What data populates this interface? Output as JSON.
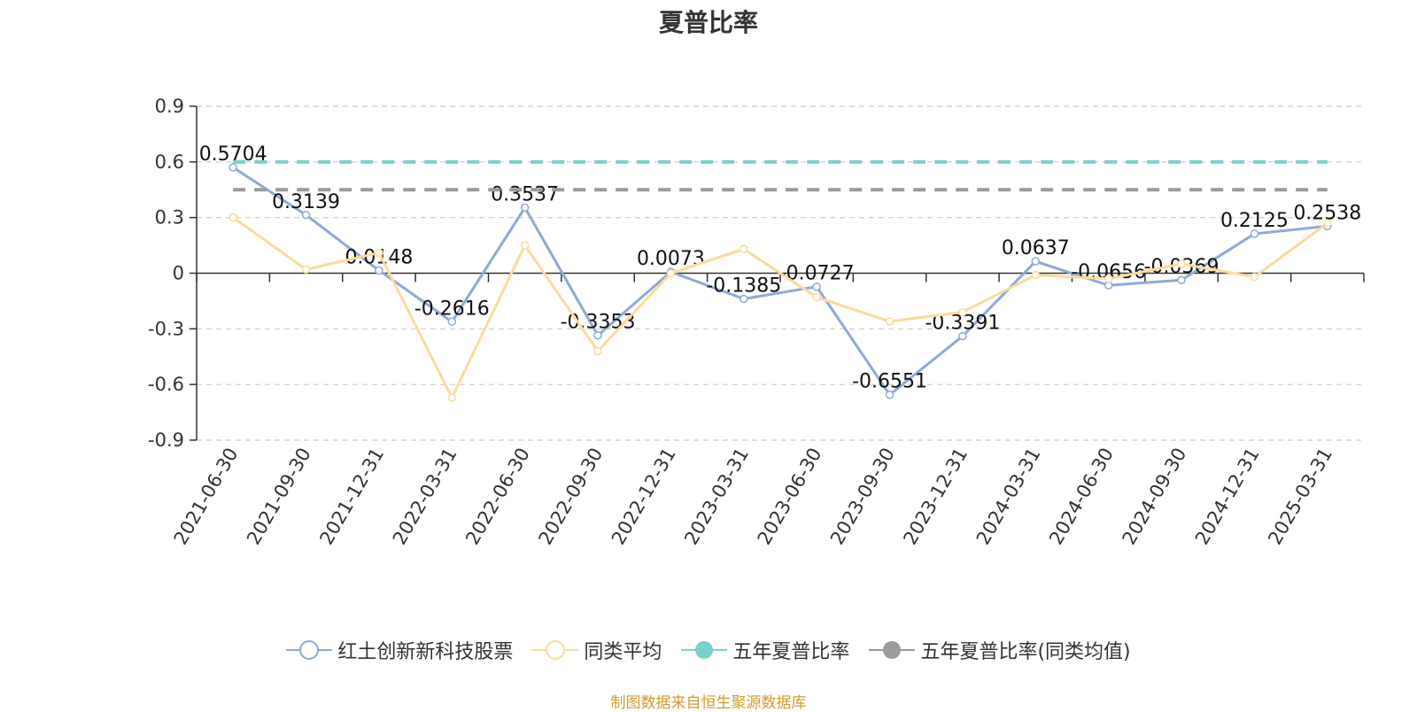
{
  "chart_data": {
    "type": "line",
    "title": "夏普比率",
    "categories": [
      "2021-06-30",
      "2021-09-30",
      "2021-12-31",
      "2022-03-31",
      "2022-06-30",
      "2022-09-30",
      "2022-12-31",
      "2023-03-31",
      "2023-06-30",
      "2023-09-30",
      "2023-12-31",
      "2024-03-31",
      "2024-06-30",
      "2024-09-30",
      "2024-12-31",
      "2025-03-31"
    ],
    "y_ticks": [
      "0.9",
      "0.6",
      "0.3",
      "0",
      "-0.3",
      "-0.6",
      "-0.9"
    ],
    "ylim": [
      -0.9,
      0.9
    ],
    "grid": true,
    "legend_position": "bottom",
    "series": [
      {
        "name": "红土创新新科技股票",
        "color": "#8eaad8",
        "style": "line",
        "values": [
          0.5704,
          0.3139,
          0.0148,
          -0.2616,
          0.3537,
          -0.3353,
          0.0073,
          -0.1385,
          -0.0727,
          -0.6551,
          -0.3391,
          0.0637,
          -0.0656,
          -0.0369,
          0.2125,
          0.2538
        ],
        "labels": [
          "0.5704",
          "0.3139",
          "0.0148",
          "-0.2616",
          "0.3537",
          "-0.3353",
          "0.0073",
          "-0.1385",
          "-0.0727",
          "-0.6551",
          "-0.3391",
          "0.0637",
          "-0.0656",
          "-0.0369",
          "0.2125",
          "0.2538"
        ]
      },
      {
        "name": "同类平均",
        "color": "#fbdb9c",
        "style": "line",
        "values": [
          0.3,
          0.02,
          0.11,
          -0.67,
          0.15,
          -0.42,
          0.0,
          0.13,
          -0.13,
          -0.26,
          -0.21,
          -0.01,
          -0.03,
          0.05,
          -0.02,
          0.27
        ]
      },
      {
        "name": "五年夏普比率",
        "color": "#7dcfcb",
        "style": "dashed",
        "values": [
          0.6,
          0.6,
          0.6,
          0.6,
          0.6,
          0.6,
          0.6,
          0.6,
          0.6,
          0.6,
          0.6,
          0.6,
          0.6,
          0.6,
          0.6,
          0.6
        ]
      },
      {
        "name": "五年夏普比率(同类均值)",
        "color": "#9b9b9b",
        "style": "dashed",
        "values": [
          0.45,
          0.45,
          0.45,
          0.45,
          0.45,
          0.45,
          0.45,
          0.45,
          0.45,
          0.45,
          0.45,
          0.45,
          0.45,
          0.45,
          0.45,
          0.45
        ]
      }
    ]
  },
  "footer": "制图数据来自恒生聚源数据库"
}
